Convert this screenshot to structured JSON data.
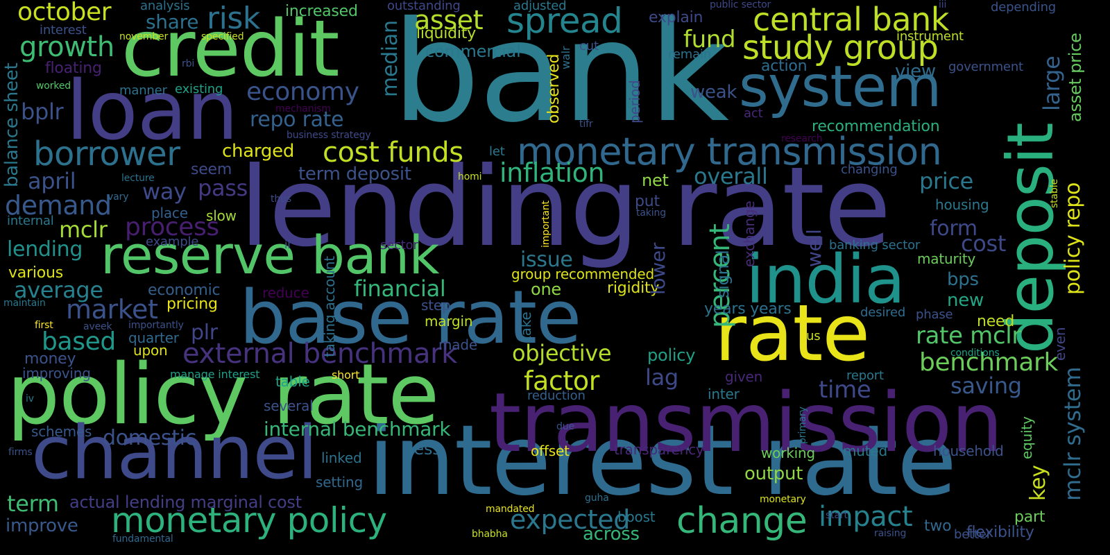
{
  "words": [
    {
      "text": "bank",
      "color": "#2c7e8e"
    },
    {
      "text": "lending rate",
      "color": "#433e85"
    },
    {
      "text": "interest rate",
      "color": "#2f6b8e"
    },
    {
      "text": "policy rate",
      "color": "#5ec962"
    },
    {
      "text": "transmission",
      "color": "#482173"
    },
    {
      "text": "credit",
      "color": "#5ec962"
    },
    {
      "text": "loan",
      "color": "#433e85"
    },
    {
      "text": "channel",
      "color": "#3e4a89"
    },
    {
      "text": "base rate",
      "color": "#31688e"
    },
    {
      "text": "rate",
      "color": "#e8e419"
    },
    {
      "text": "india",
      "color": "#20928c"
    },
    {
      "text": "deposit",
      "color": "#2ab07f"
    },
    {
      "text": "system",
      "color": "#2f6c8e"
    },
    {
      "text": "reserve bank",
      "color": "#52c569"
    },
    {
      "text": "monetary transmission",
      "color": "#31688e"
    },
    {
      "text": "monetary policy",
      "color": "#2db27d"
    },
    {
      "text": "change",
      "color": "#35b779"
    },
    {
      "text": "borrower",
      "color": "#2c718e"
    },
    {
      "text": "spread",
      "color": "#25858e"
    },
    {
      "text": "study group",
      "color": "#bddf26"
    },
    {
      "text": "central bank",
      "color": "#bddf26"
    },
    {
      "text": "external benchmark",
      "color": "#46327e"
    },
    {
      "text": "cost funds",
      "color": "#c2df23"
    },
    {
      "text": "risk",
      "color": "#2c728e"
    },
    {
      "text": "october",
      "color": "#c8e020"
    },
    {
      "text": "growth",
      "color": "#3fbc73"
    },
    {
      "text": "asset",
      "color": "#b5de2b"
    },
    {
      "text": "economy",
      "color": "#3a538b"
    },
    {
      "text": "repo rate",
      "color": "#34618d"
    },
    {
      "text": "inflation",
      "color": "#2fb47c"
    },
    {
      "text": "impact",
      "color": "#26828e"
    },
    {
      "text": "expected",
      "color": "#2a778e"
    },
    {
      "text": "internal benchmark",
      "color": "#37b878"
    },
    {
      "text": "factor",
      "color": "#c2df23"
    },
    {
      "text": "objective",
      "color": "#b5de2b"
    },
    {
      "text": "financial",
      "color": "#35b779"
    },
    {
      "text": "percent",
      "color": "#35b779"
    },
    {
      "text": "market",
      "color": "#3b528b"
    },
    {
      "text": "demand",
      "color": "#38598c"
    },
    {
      "text": "rate mclr",
      "color": "#52c569"
    },
    {
      "text": "benchmark",
      "color": "#6ccd5a"
    },
    {
      "text": "term",
      "color": "#3fbc73"
    },
    {
      "text": "based",
      "color": "#1f978b"
    },
    {
      "text": "average",
      "color": "#26828e"
    },
    {
      "text": "process",
      "color": "#481f70"
    },
    {
      "text": "fund",
      "color": "#b0dd2f"
    },
    {
      "text": "time",
      "color": "#3e4989"
    },
    {
      "text": "price",
      "color": "#2a788e"
    },
    {
      "text": "domestic",
      "color": "#3b528b"
    },
    {
      "text": "mclr system",
      "color": "#2f6c8e"
    },
    {
      "text": "policy repo",
      "color": "#dde318"
    },
    {
      "text": "asset price",
      "color": "#65cb5e"
    },
    {
      "text": "lending",
      "color": "#21918c"
    },
    {
      "text": "april",
      "color": "#3b528b"
    },
    {
      "text": "bplr",
      "color": "#3b528b"
    },
    {
      "text": "mclr",
      "color": "#a5db36"
    },
    {
      "text": "pass",
      "color": "#443983"
    },
    {
      "text": "way",
      "color": "#3e4a89"
    },
    {
      "text": "saving",
      "color": "#38598c"
    },
    {
      "text": "plr",
      "color": "#404688"
    },
    {
      "text": "lag",
      "color": "#3e4989"
    },
    {
      "text": "overall",
      "color": "#2a788e"
    },
    {
      "text": "issue",
      "color": "#2a778e"
    },
    {
      "text": "form",
      "color": "#3e4989"
    },
    {
      "text": "cost",
      "color": "#3e4989"
    },
    {
      "text": "view",
      "color": "#2f6c8e"
    },
    {
      "text": "weak",
      "color": "#3b528b"
    },
    {
      "text": "large",
      "color": "#33638d"
    },
    {
      "text": "key",
      "color": "#c8e020"
    },
    {
      "text": "charged",
      "color": "#dde318"
    },
    {
      "text": "term deposit",
      "color": "#3b528b"
    },
    {
      "text": "actual lending marginal cost",
      "color": "#433e85"
    },
    {
      "text": "improve",
      "color": "#38598c"
    },
    {
      "text": "across",
      "color": "#35b779"
    },
    {
      "text": "output",
      "color": "#8fd744"
    },
    {
      "text": "share",
      "color": "#2c718e"
    },
    {
      "text": "commercial",
      "color": "#2a788e"
    },
    {
      "text": "liquidity",
      "color": "#b5de2b"
    },
    {
      "text": "median",
      "color": "#2a788e"
    },
    {
      "text": "balance sheet",
      "color": "#2a788e"
    },
    {
      "text": "action",
      "color": "#2f6c8e"
    },
    {
      "text": "recommendation",
      "color": "#2ab07f"
    },
    {
      "text": "group recommended",
      "color": "#dde318"
    },
    {
      "text": "rigidity",
      "color": "#dde318"
    },
    {
      "text": "one",
      "color": "#8fd744"
    },
    {
      "text": "economic",
      "color": "#355f8d"
    },
    {
      "text": "pricing",
      "color": "#e8e419"
    },
    {
      "text": "money",
      "color": "#3b528b"
    },
    {
      "text": "various",
      "color": "#dde318"
    },
    {
      "text": "new",
      "color": "#22a785"
    },
    {
      "text": "need",
      "color": "#c2df23"
    },
    {
      "text": "bps",
      "color": "#2c728e"
    },
    {
      "text": "maturity",
      "color": "#6ccd5a"
    },
    {
      "text": "housing",
      "color": "#2a788e"
    },
    {
      "text": "banking sector",
      "color": "#2c728e"
    },
    {
      "text": "well",
      "color": "#404688"
    },
    {
      "text": "lower",
      "color": "#3e4989"
    },
    {
      "text": "signal",
      "color": "#2c718e"
    },
    {
      "text": "exchange",
      "color": "#472d7b"
    },
    {
      "text": "policy",
      "color": "#1fa188"
    },
    {
      "text": "years years",
      "color": "#2c728e"
    },
    {
      "text": "desired",
      "color": "#2f6c8e"
    },
    {
      "text": "phase",
      "color": "#3b528b"
    },
    {
      "text": "margin",
      "color": "#bddf26"
    },
    {
      "text": "part",
      "color": "#6ccd5a"
    },
    {
      "text": "two",
      "color": "#31688e"
    },
    {
      "text": "household",
      "color": "#3b528b"
    },
    {
      "text": "flexibility",
      "color": "#3b528b"
    },
    {
      "text": "better",
      "color": "#3b528b"
    },
    {
      "text": "equity",
      "color": "#5ec962"
    },
    {
      "text": "even",
      "color": "#404688"
    },
    {
      "text": "report",
      "color": "#2a788e"
    },
    {
      "text": "given",
      "color": "#482878"
    },
    {
      "text": "inter",
      "color": "#2a788e"
    },
    {
      "text": "reduction",
      "color": "#35608d"
    },
    {
      "text": "working",
      "color": "#6ccd5a"
    },
    {
      "text": "muted",
      "color": "#2a788e"
    },
    {
      "text": "transparency",
      "color": "#482878"
    },
    {
      "text": "boost",
      "color": "#2a788e"
    },
    {
      "text": "offset",
      "color": "#e8e419"
    },
    {
      "text": "setting",
      "color": "#31688e"
    },
    {
      "text": "linked",
      "color": "#2c718e"
    },
    {
      "text": "less",
      "color": "#2f6c8e"
    },
    {
      "text": "several",
      "color": "#3b528b"
    },
    {
      "text": "table",
      "color": "#1fa188"
    },
    {
      "text": "short",
      "color": "#fde725"
    },
    {
      "text": "manage interest",
      "color": "#1fa188"
    },
    {
      "text": "schemes",
      "color": "#38598c"
    },
    {
      "text": "iv",
      "color": "#2a788e"
    },
    {
      "text": "firms",
      "color": "#3b528b"
    },
    {
      "text": "first",
      "color": "#fde725"
    },
    {
      "text": "aveek",
      "color": "#3b528b"
    },
    {
      "text": "importantly",
      "color": "#3b528b"
    },
    {
      "text": "upon",
      "color": "#dde318"
    },
    {
      "text": "quarter",
      "color": "#31688e"
    },
    {
      "text": "step",
      "color": "#3b528b"
    },
    {
      "text": "made",
      "color": "#3b528b"
    },
    {
      "text": "reduce",
      "color": "#440154"
    },
    {
      "text": "example",
      "color": "#3e4a89"
    },
    {
      "text": "maintain",
      "color": "#2a788e"
    },
    {
      "text": "improving",
      "color": "#3b528b"
    },
    {
      "text": "internal",
      "color": "#2a788e"
    },
    {
      "text": "place",
      "color": "#355f8d"
    },
    {
      "text": "slow",
      "color": "#a5db36"
    },
    {
      "text": "lecture",
      "color": "#2c718e"
    },
    {
      "text": "vary",
      "color": "#31688e"
    },
    {
      "text": "seem",
      "color": "#3e4a89"
    },
    {
      "text": "thus",
      "color": "#3e4a89"
    },
    {
      "text": "ii",
      "color": "#3b528b"
    },
    {
      "text": "sector",
      "color": "#482878"
    },
    {
      "text": "put",
      "color": "#3e4a89"
    },
    {
      "text": "net",
      "color": "#8fd744"
    },
    {
      "text": "taking",
      "color": "#3b528b"
    },
    {
      "text": "let",
      "color": "#2a788e"
    },
    {
      "text": "homi",
      "color": "#c8e020"
    },
    {
      "text": "changing",
      "color": "#3b528b"
    },
    {
      "text": "act",
      "color": "#482878"
    },
    {
      "text": "research",
      "color": "#440154"
    },
    {
      "text": "tifr",
      "color": "#3b528b"
    },
    {
      "text": "cut",
      "color": "#3b528b"
    },
    {
      "text": "remain",
      "color": "#2c728e"
    },
    {
      "text": "explain",
      "color": "#3e4989"
    },
    {
      "text": "public sector",
      "color": "#3e4989"
    },
    {
      "text": "iii",
      "color": "#3e4989"
    },
    {
      "text": "depending",
      "color": "#3b528b"
    },
    {
      "text": "instrument",
      "color": "#bddf26"
    },
    {
      "text": "government",
      "color": "#3b528b"
    },
    {
      "text": "adjusted",
      "color": "#2a788e"
    },
    {
      "text": "outstanding",
      "color": "#3e4989"
    },
    {
      "text": "increased",
      "color": "#52c569"
    },
    {
      "text": "analysis",
      "color": "#2c718e"
    },
    {
      "text": "interest",
      "color": "#3b528b"
    },
    {
      "text": "november",
      "color": "#c8e020"
    },
    {
      "text": "specified",
      "color": "#c8e020"
    },
    {
      "text": "floating",
      "color": "#482173"
    },
    {
      "text": "worked",
      "color": "#52c569"
    },
    {
      "text": "rbi",
      "color": "#3b528b"
    },
    {
      "text": "manner",
      "color": "#2c728e"
    },
    {
      "text": "existing",
      "color": "#1fa188"
    },
    {
      "text": "mechanism",
      "color": "#440154"
    },
    {
      "text": "business strategy",
      "color": "#3e4a89"
    },
    {
      "text": "fundamental",
      "color": "#31688e"
    },
    {
      "text": "bhabha",
      "color": "#c8e020"
    },
    {
      "text": "mandated",
      "color": "#e8e419"
    },
    {
      "text": "guha",
      "color": "#2c718e"
    },
    {
      "text": "monetary",
      "color": "#dde318"
    },
    {
      "text": "start",
      "color": "#3b528b"
    },
    {
      "text": "raising",
      "color": "#3b528b"
    },
    {
      "text": "due",
      "color": "#3b528b"
    },
    {
      "text": "us",
      "color": "#c8e020"
    },
    {
      "text": "conditions",
      "color": "#1fa188"
    },
    {
      "text": "stable",
      "color": "#c8e020"
    },
    {
      "text": "primary",
      "color": "#2a788e"
    },
    {
      "text": "taking account",
      "color": "#2c718e"
    },
    {
      "text": "take",
      "color": "#2c718e"
    },
    {
      "text": "observed",
      "color": "#e8e419"
    },
    {
      "text": "period",
      "color": "#3e4989"
    },
    {
      "text": "important",
      "color": "#fde725"
    },
    {
      "text": "walr",
      "color": "#2c718e"
    }
  ]
}
